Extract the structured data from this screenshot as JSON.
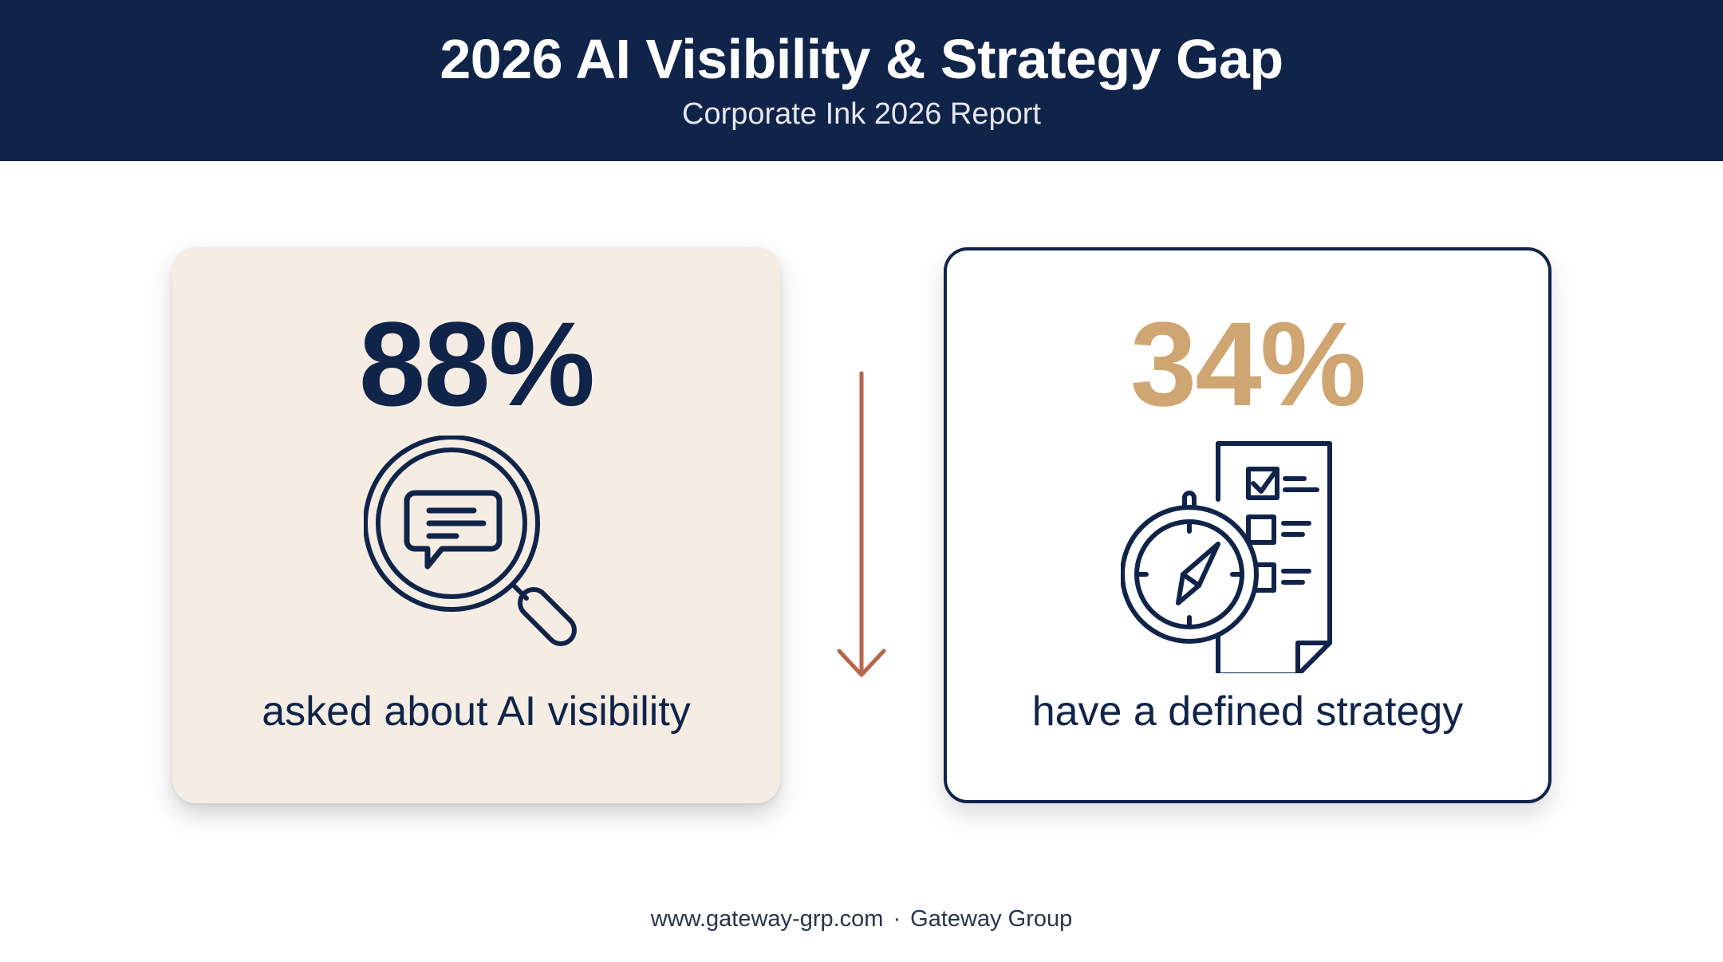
{
  "header": {
    "title": "2026 AI Visibility & Strategy Gap",
    "subtitle": "Corporate Ink 2026 Report"
  },
  "stats": [
    {
      "value": "88%",
      "caption": "asked about AI visibility",
      "icon": "magnifier-chat-icon",
      "value_color": "#10244a",
      "card_background": "#f5ede3"
    },
    {
      "value": "34%",
      "caption": "have a defined strategy",
      "icon": "compass-checklist-icon",
      "value_color": "#cfa572",
      "card_background": "#ffffff"
    }
  ],
  "connector": {
    "icon": "arrow-down-icon",
    "color": "#b8664a"
  },
  "footer": {
    "website": "www.gateway-grp.com",
    "separator": "·",
    "company": "Gateway Group"
  },
  "colors": {
    "navy": "#10244a",
    "gold": "#cfa572",
    "cream": "#f5ede3",
    "rust": "#b8664a"
  }
}
